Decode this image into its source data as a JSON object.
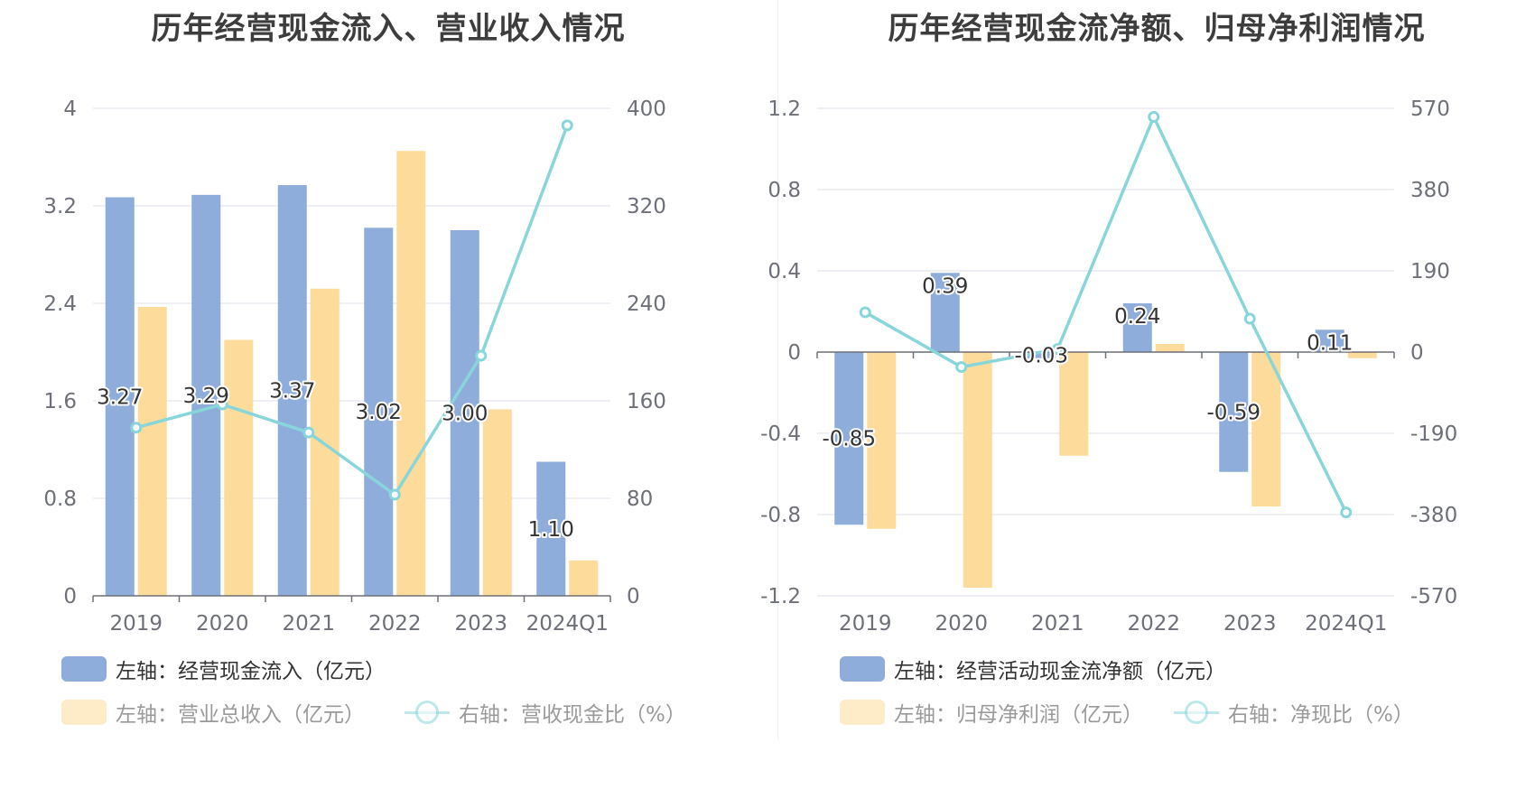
{
  "charts": [
    {
      "title": "历年经营现金流入、营业收入情况",
      "legend": [
        {
          "label": "左轴：经营现金流入（亿元）",
          "kind": "bar",
          "color": "#8eaddb",
          "active": true
        },
        {
          "label": "左轴：营业总收入（亿元）",
          "kind": "bar",
          "color": "#fddb9a",
          "active": false
        },
        {
          "label": "右轴：营收现金比（%）",
          "kind": "line",
          "color": "#88d6da",
          "active": false
        }
      ]
    },
    {
      "title": "历年经营现金流净额、归母净利润情况",
      "legend": [
        {
          "label": "左轴：经营活动现金流净额（亿元）",
          "kind": "bar",
          "color": "#8eaddb",
          "active": true
        },
        {
          "label": "左轴：归母净利润（亿元）",
          "kind": "bar",
          "color": "#fddb9a",
          "active": false
        },
        {
          "label": "右轴：净现比（%）",
          "kind": "line",
          "color": "#88d6da",
          "active": false
        }
      ]
    }
  ],
  "chart_data": [
    {
      "type": "bar",
      "title": "历年经营现金流入、营业收入情况",
      "categories": [
        "2019",
        "2020",
        "2021",
        "2022",
        "2023",
        "2024Q1"
      ],
      "left_axis": {
        "min": 0,
        "max": 4,
        "ticks": [
          "0",
          "0.8",
          "1.6",
          "2.4",
          "3.2",
          "4"
        ]
      },
      "right_axis": {
        "min": 0,
        "max": 400,
        "ticks": [
          "0",
          "80",
          "160",
          "240",
          "320",
          "400"
        ]
      },
      "grid": true,
      "series": [
        {
          "name": "左轴：经营现金流入（亿元）",
          "type": "bar",
          "axis": "left",
          "color": "#8eaddb",
          "values": [
            3.27,
            3.29,
            3.37,
            3.02,
            3.0,
            1.1
          ],
          "labels": [
            "3.27",
            "3.29",
            "3.37",
            "3.02",
            "3.00",
            "1.10"
          ]
        },
        {
          "name": "左轴：营业总收入（亿元）",
          "type": "bar",
          "axis": "left",
          "color": "#fddb9a",
          "values": [
            2.37,
            2.1,
            2.52,
            3.65,
            1.53,
            0.29
          ]
        },
        {
          "name": "右轴：营收现金比（%）",
          "type": "line",
          "axis": "right",
          "color": "#88d6da",
          "values": [
            138,
            157,
            134,
            83,
            197,
            386
          ]
        }
      ]
    },
    {
      "type": "bar",
      "title": "历年经营现金流净额、归母净利润情况",
      "categories": [
        "2019",
        "2020",
        "2021",
        "2022",
        "2023",
        "2024Q1"
      ],
      "left_axis": {
        "min": -1.2,
        "max": 1.2,
        "ticks": [
          "-1.2",
          "-0.8",
          "-0.4",
          "0",
          "0.4",
          "0.8",
          "1.2"
        ]
      },
      "right_axis": {
        "min": -570,
        "max": 570,
        "ticks": [
          "-570",
          "-380",
          "-190",
          "0",
          "190",
          "380",
          "570"
        ]
      },
      "grid": true,
      "series": [
        {
          "name": "左轴：经营活动现金流净额（亿元）",
          "type": "bar",
          "axis": "left",
          "color": "#8eaddb",
          "values": [
            -0.85,
            0.39,
            -0.03,
            0.24,
            -0.59,
            0.11
          ],
          "labels": [
            "-0.85",
            "0.39",
            "-0.03",
            "0.24",
            "-0.59",
            "0.11"
          ]
        },
        {
          "name": "左轴：归母净利润（亿元）",
          "type": "bar",
          "axis": "left",
          "color": "#fddb9a",
          "values": [
            -0.87,
            -1.16,
            -0.51,
            0.04,
            -0.76,
            -0.03
          ]
        },
        {
          "name": "右轴：净现比（%）",
          "type": "line",
          "axis": "right",
          "color": "#88d6da",
          "values": [
            93,
            -35,
            7,
            550,
            78,
            -375
          ]
        }
      ]
    }
  ]
}
